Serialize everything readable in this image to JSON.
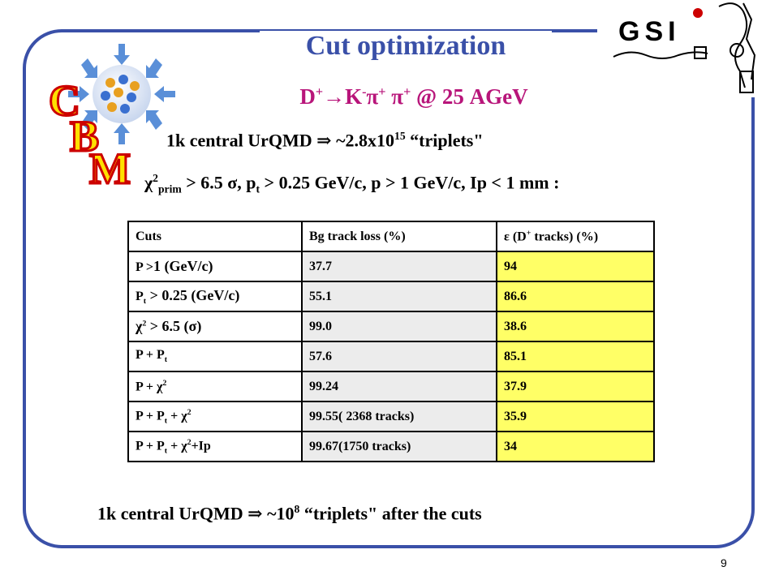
{
  "slide": {
    "title": "Cut optimization",
    "reaction": {
      "a": "D",
      "b": "K",
      "c": "π",
      "d": "π",
      "tail": " @ 25 AGeV"
    },
    "line1": {
      "pre": "1k central UrQMD ",
      "mid": " ~2.8x10",
      "exp": "15",
      "post": " “triplets\""
    },
    "line2": {
      "chi": "χ",
      "exp": "2",
      "sub": "prim",
      "a": " > 6.5 σ,    p",
      "tsub": "t",
      "b": " > 0.25 GeV/c,    p > 1 GeV/c, Ip < 1 mm :"
    },
    "line3": {
      "pre": "1k central UrQMD ",
      "mid": " ~10",
      "exp": "8",
      "post": " “triplets\" after the cuts"
    },
    "page_number": "9"
  },
  "logos": {
    "cbm": {
      "c": "C",
      "b": "B",
      "m": "M"
    },
    "gsi": "GSI"
  },
  "table": {
    "header": {
      "cuts": "Cuts",
      "bg": "Bg track loss (%)",
      "eff_a": "ε (D",
      "eff_b": " tracks) (%)"
    },
    "rows": [
      {
        "cut_a": "P >",
        "cut_b": "1 (GeV/c)",
        "bg": "37.7",
        "eff": "94"
      },
      {
        "cut_a": "P",
        "cut_sub": "t",
        "cut_b": " > 0.25 (GeV/c)",
        "bg": "55.1",
        "eff": "86.6"
      },
      {
        "cut_a": "χ",
        "cut_exp": "2",
        "cut_b": " > 6.5 (σ)",
        "bg": "99.0",
        "eff": "38.6"
      },
      {
        "cut_a": "P + P",
        "cut_sub": "t",
        "bg": "57.6",
        "eff": "85.1"
      },
      {
        "cut_a": "P + χ",
        "cut_exp": "2",
        "bg": "99.24",
        "eff": "37.9"
      },
      {
        "cut_a": "P + P",
        "cut_sub": "t",
        "cut_b": " + χ",
        "cut_exp": "2",
        "bg": "99.55( 2368 tracks)",
        "eff": "35.9"
      },
      {
        "cut_a": "P + P",
        "cut_sub": "t",
        "cut_b": " + χ",
        "cut_exp": "2",
        "cut_c": "+Ip",
        "bg": "99.67(1750 tracks)",
        "eff": "34"
      }
    ]
  },
  "colors": {
    "frame": "#3a50a8",
    "title": "#3a50a8",
    "reaction": "#b8157a",
    "highlight": "#ffff66",
    "cbm_letters": "#cc0000",
    "gsi_dot": "#cc0000"
  }
}
